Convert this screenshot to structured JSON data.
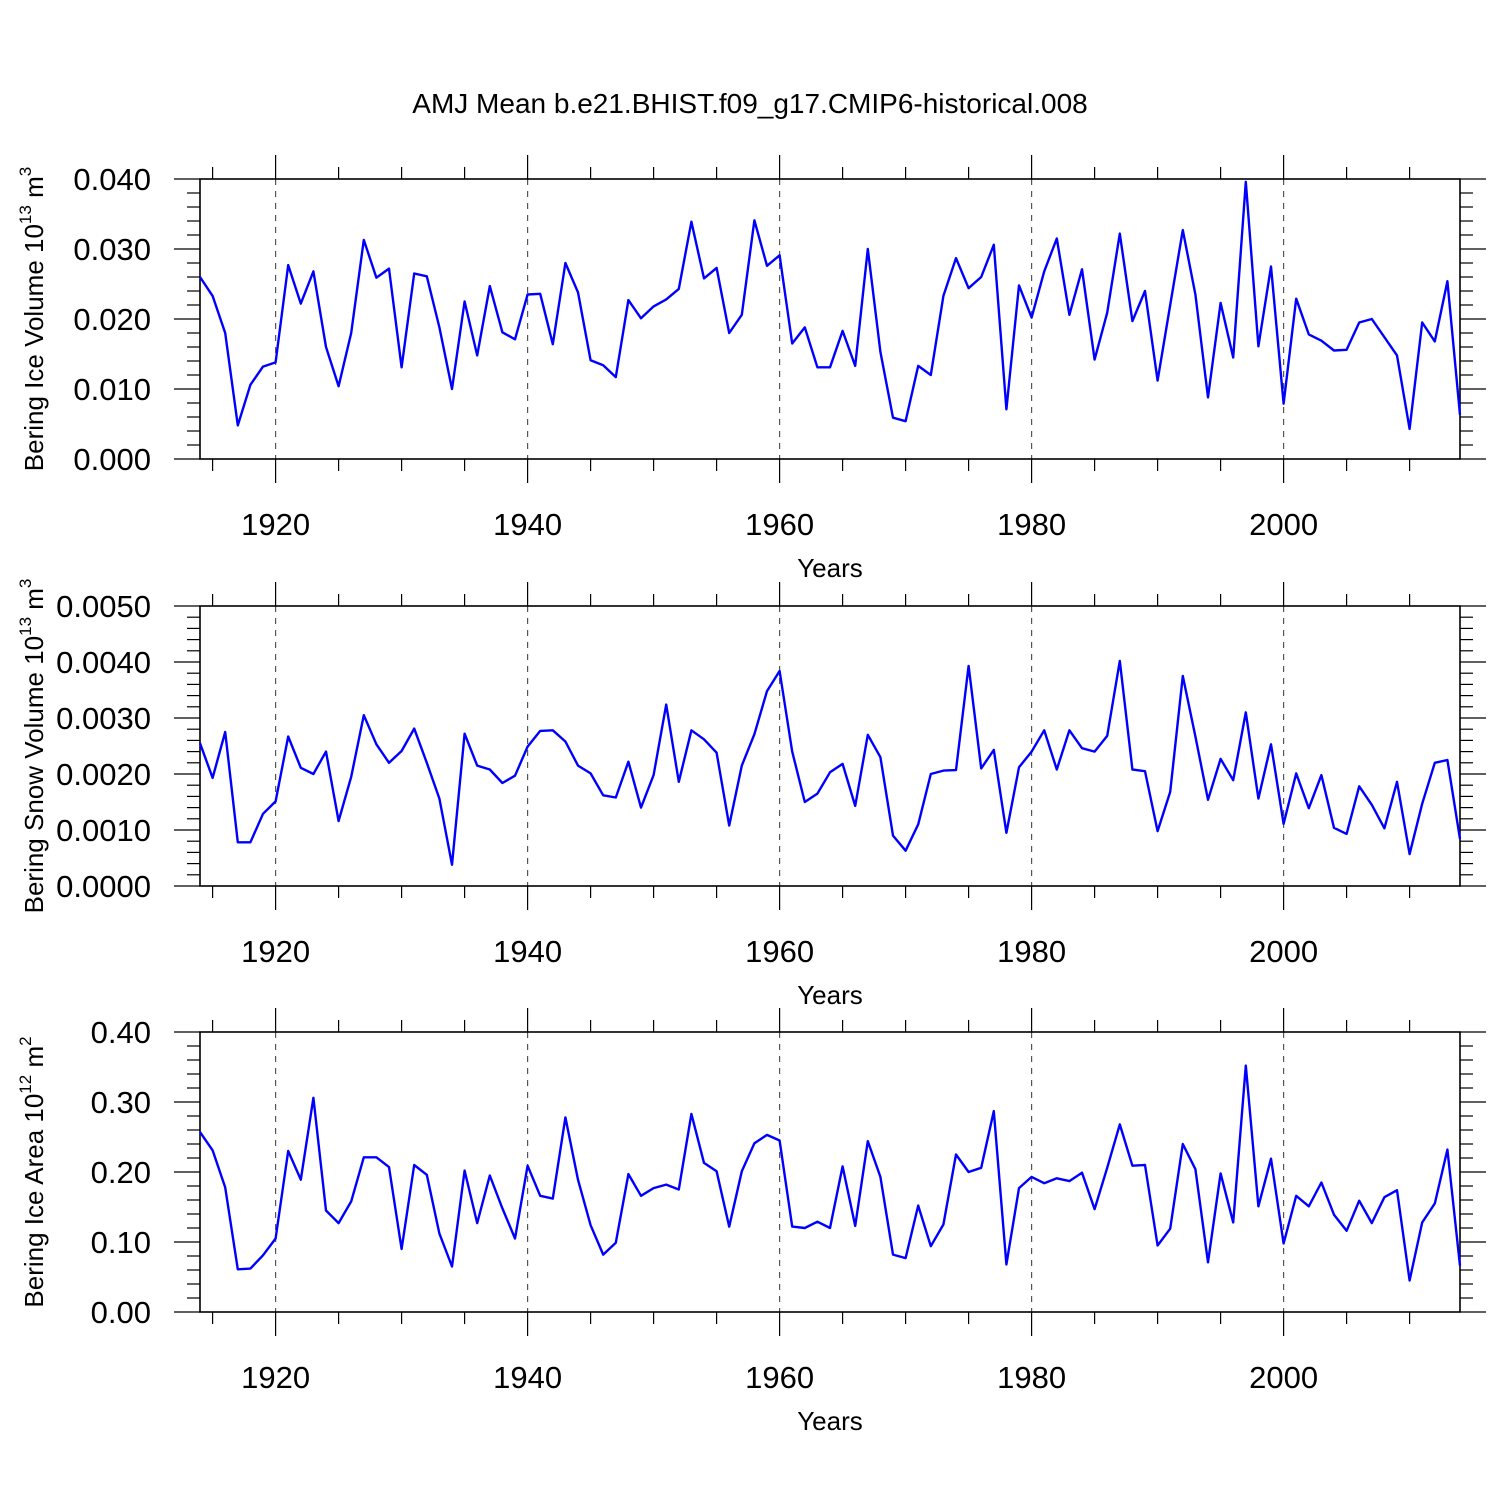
{
  "title": "AMJ Mean b.e21.BHIST.f09_g17.CMIP6-historical.008",
  "chart_data": [
    {
      "type": "line",
      "title": "AMJ Mean b.e21.BHIST.f09_g17.CMIP6-historical.008",
      "xlabel": "Years",
      "ylabel": "Bering Ice Volume 10",
      "ylabel_exp": "13",
      "ylabel_unit": " m",
      "ylabel_unit_exp": "3",
      "xlim": [
        1914,
        2014
      ],
      "ylim": [
        0.0,
        0.04
      ],
      "xticks": [
        1920,
        1940,
        1960,
        1980,
        2000
      ],
      "xtick_labels": [
        "1920",
        "1940",
        "1960",
        "1980",
        "2000"
      ],
      "yticks": [
        0.0,
        0.01,
        0.02,
        0.03,
        0.04
      ],
      "ytick_labels": [
        "0.000",
        "0.010",
        "0.020",
        "0.030",
        "0.040"
      ],
      "grid": "x dashed",
      "color": "#0000ff",
      "x": [
        1914,
        1915,
        1916,
        1917,
        1918,
        1919,
        1920,
        1921,
        1922,
        1923,
        1924,
        1925,
        1926,
        1927,
        1928,
        1929,
        1930,
        1931,
        1932,
        1933,
        1934,
        1935,
        1936,
        1937,
        1938,
        1939,
        1940,
        1941,
        1942,
        1943,
        1944,
        1945,
        1946,
        1947,
        1948,
        1949,
        1950,
        1951,
        1952,
        1953,
        1954,
        1955,
        1956,
        1957,
        1958,
        1959,
        1960,
        1961,
        1962,
        1963,
        1964,
        1965,
        1966,
        1967,
        1968,
        1969,
        1970,
        1971,
        1972,
        1973,
        1974,
        1975,
        1976,
        1977,
        1978,
        1979,
        1980,
        1981,
        1982,
        1983,
        1984,
        1985,
        1986,
        1987,
        1988,
        1989,
        1990,
        1991,
        1992,
        1993,
        1994,
        1995,
        1996,
        1997,
        1998,
        1999,
        2000,
        2001,
        2002,
        2003,
        2004,
        2005,
        2006,
        2007,
        2008,
        2009,
        2010,
        2011,
        2012,
        2013,
        2014
      ],
      "values": [
        0.026,
        0.0233,
        0.018,
        0.0048,
        0.0106,
        0.0132,
        0.0138,
        0.0277,
        0.0222,
        0.0268,
        0.016,
        0.0104,
        0.018,
        0.0313,
        0.0259,
        0.0272,
        0.0131,
        0.0265,
        0.0261,
        0.0188,
        0.01,
        0.0225,
        0.0148,
        0.0247,
        0.0181,
        0.0171,
        0.0235,
        0.0236,
        0.0164,
        0.028,
        0.0238,
        0.0141,
        0.0134,
        0.0117,
        0.0227,
        0.0201,
        0.0218,
        0.0228,
        0.0243,
        0.0339,
        0.0258,
        0.0273,
        0.018,
        0.0206,
        0.0341,
        0.0276,
        0.0291,
        0.0165,
        0.0188,
        0.0131,
        0.0131,
        0.0183,
        0.0133,
        0.03,
        0.0153,
        0.0059,
        0.0054,
        0.0133,
        0.012,
        0.0233,
        0.0287,
        0.0244,
        0.026,
        0.0306,
        0.0071,
        0.0248,
        0.0202,
        0.0268,
        0.0315,
        0.0206,
        0.0271,
        0.0142,
        0.0209,
        0.0322,
        0.0197,
        0.024,
        0.0112,
        0.022,
        0.0327,
        0.0235,
        0.0088,
        0.0223,
        0.0145,
        0.0396,
        0.0161,
        0.0275,
        0.0079,
        0.0229,
        0.0178,
        0.0169,
        0.0155,
        0.0156,
        0.0195,
        0.02,
        0.0174,
        0.0148,
        0.0043,
        0.0195,
        0.0168,
        0.0254,
        0.0063
      ]
    },
    {
      "type": "line",
      "xlabel": "Years",
      "ylabel": "Bering Snow Volume 10",
      "ylabel_exp": "13",
      "ylabel_unit": " m",
      "ylabel_unit_exp": "3",
      "xlim": [
        1914,
        2014
      ],
      "ylim": [
        0.0,
        0.005
      ],
      "xticks": [
        1920,
        1940,
        1960,
        1980,
        2000
      ],
      "xtick_labels": [
        "1920",
        "1940",
        "1960",
        "1980",
        "2000"
      ],
      "yticks": [
        0.0,
        0.001,
        0.002,
        0.003,
        0.004,
        0.005
      ],
      "ytick_labels": [
        "0.0000",
        "0.0010",
        "0.0020",
        "0.0030",
        "0.0040",
        "0.0050"
      ],
      "grid": "x dashed",
      "color": "#0000ff",
      "x": [
        1914,
        1915,
        1916,
        1917,
        1918,
        1919,
        1920,
        1921,
        1922,
        1923,
        1924,
        1925,
        1926,
        1927,
        1928,
        1929,
        1930,
        1931,
        1932,
        1933,
        1934,
        1935,
        1936,
        1937,
        1938,
        1939,
        1940,
        1941,
        1942,
        1943,
        1944,
        1945,
        1946,
        1947,
        1948,
        1949,
        1950,
        1951,
        1952,
        1953,
        1954,
        1955,
        1956,
        1957,
        1958,
        1959,
        1960,
        1961,
        1962,
        1963,
        1964,
        1965,
        1966,
        1967,
        1968,
        1969,
        1970,
        1971,
        1972,
        1973,
        1974,
        1975,
        1976,
        1977,
        1978,
        1979,
        1980,
        1981,
        1982,
        1983,
        1984,
        1985,
        1986,
        1987,
        1988,
        1989,
        1990,
        1991,
        1992,
        1993,
        1994,
        1995,
        1996,
        1997,
        1998,
        1999,
        2000,
        2001,
        2002,
        2003,
        2004,
        2005,
        2006,
        2007,
        2008,
        2009,
        2010,
        2011,
        2012,
        2013,
        2014
      ],
      "values": [
        0.00255,
        0.00193,
        0.00275,
        0.00078,
        0.00078,
        0.00129,
        0.00151,
        0.00267,
        0.00211,
        0.002,
        0.0024,
        0.00116,
        0.00195,
        0.00305,
        0.00253,
        0.0022,
        0.00241,
        0.00281,
        0.0022,
        0.00156,
        0.00038,
        0.00272,
        0.00215,
        0.00208,
        0.00184,
        0.00197,
        0.00249,
        0.00277,
        0.00278,
        0.00258,
        0.00215,
        0.00201,
        0.00162,
        0.00158,
        0.00222,
        0.0014,
        0.00198,
        0.00324,
        0.00186,
        0.00278,
        0.00262,
        0.00238,
        0.00108,
        0.00215,
        0.00271,
        0.00348,
        0.00384,
        0.0024,
        0.0015,
        0.00165,
        0.00203,
        0.00218,
        0.00143,
        0.0027,
        0.0023,
        0.0009,
        0.00063,
        0.0011,
        0.002,
        0.00206,
        0.00207,
        0.00393,
        0.0021,
        0.00243,
        0.00095,
        0.00212,
        0.0024,
        0.00278,
        0.00208,
        0.00278,
        0.00246,
        0.0024,
        0.00268,
        0.00402,
        0.00208,
        0.00205,
        0.00098,
        0.00168,
        0.00375,
        0.00267,
        0.00154,
        0.00227,
        0.00189,
        0.0031,
        0.00156,
        0.00253,
        0.00111,
        0.00201,
        0.00139,
        0.00198,
        0.00104,
        0.00093,
        0.00178,
        0.00145,
        0.00103,
        0.00186,
        0.00057,
        0.00147,
        0.0022,
        0.00225,
        0.00084
      ]
    },
    {
      "type": "line",
      "xlabel": "Years",
      "ylabel": "Bering Ice Area 10",
      "ylabel_exp": "12",
      "ylabel_unit": " m",
      "ylabel_unit_exp": "2",
      "xlim": [
        1914,
        2014
      ],
      "ylim": [
        0.0,
        0.4
      ],
      "xticks": [
        1920,
        1940,
        1960,
        1980,
        2000
      ],
      "xtick_labels": [
        "1920",
        "1940",
        "1960",
        "1980",
        "2000"
      ],
      "yticks": [
        0.0,
        0.1,
        0.2,
        0.3,
        0.4
      ],
      "ytick_labels": [
        "0.00",
        "0.10",
        "0.20",
        "0.30",
        "0.40"
      ],
      "grid": "x dashed",
      "color": "#0000ff",
      "x": [
        1914,
        1915,
        1916,
        1917,
        1918,
        1919,
        1920,
        1921,
        1922,
        1923,
        1924,
        1925,
        1926,
        1927,
        1928,
        1929,
        1930,
        1931,
        1932,
        1933,
        1934,
        1935,
        1936,
        1937,
        1938,
        1939,
        1940,
        1941,
        1942,
        1943,
        1944,
        1945,
        1946,
        1947,
        1948,
        1949,
        1950,
        1951,
        1952,
        1953,
        1954,
        1955,
        1956,
        1957,
        1958,
        1959,
        1960,
        1961,
        1962,
        1963,
        1964,
        1965,
        1966,
        1967,
        1968,
        1969,
        1970,
        1971,
        1972,
        1973,
        1974,
        1975,
        1976,
        1977,
        1978,
        1979,
        1980,
        1981,
        1982,
        1983,
        1984,
        1985,
        1986,
        1987,
        1988,
        1989,
        1990,
        1991,
        1992,
        1993,
        1994,
        1995,
        1996,
        1997,
        1998,
        1999,
        2000,
        2001,
        2002,
        2003,
        2004,
        2005,
        2006,
        2007,
        2008,
        2009,
        2010,
        2011,
        2012,
        2013,
        2014
      ],
      "values": [
        0.257,
        0.231,
        0.178,
        0.061,
        0.062,
        0.081,
        0.105,
        0.23,
        0.189,
        0.306,
        0.145,
        0.127,
        0.158,
        0.221,
        0.221,
        0.207,
        0.09,
        0.21,
        0.196,
        0.112,
        0.065,
        0.202,
        0.127,
        0.195,
        0.148,
        0.105,
        0.209,
        0.166,
        0.162,
        0.278,
        0.189,
        0.124,
        0.082,
        0.099,
        0.197,
        0.166,
        0.177,
        0.182,
        0.175,
        0.283,
        0.213,
        0.201,
        0.122,
        0.201,
        0.241,
        0.253,
        0.245,
        0.122,
        0.12,
        0.129,
        0.12,
        0.208,
        0.123,
        0.244,
        0.193,
        0.082,
        0.077,
        0.152,
        0.094,
        0.125,
        0.225,
        0.2,
        0.206,
        0.287,
        0.068,
        0.177,
        0.193,
        0.184,
        0.191,
        0.187,
        0.199,
        0.147,
        0.206,
        0.268,
        0.209,
        0.21,
        0.095,
        0.119,
        0.24,
        0.204,
        0.071,
        0.198,
        0.128,
        0.352,
        0.151,
        0.219,
        0.098,
        0.166,
        0.151,
        0.185,
        0.139,
        0.116,
        0.159,
        0.127,
        0.164,
        0.174,
        0.045,
        0.128,
        0.155,
        0.232,
        0.066
      ]
    }
  ]
}
